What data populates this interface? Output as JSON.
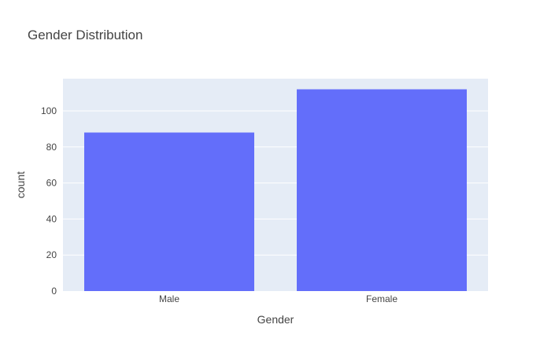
{
  "chart_data": {
    "type": "bar",
    "title": "Gender Distribution",
    "xlabel": "Gender",
    "ylabel": "count",
    "categories": [
      "Male",
      "Female"
    ],
    "values": [
      88,
      112
    ],
    "ylim": [
      0,
      117.9
    ],
    "yticks": [
      0,
      20,
      40,
      60,
      80,
      100
    ],
    "grid": true,
    "colors": {
      "bar": "#636efa",
      "plot_bg": "#e5ecf6",
      "grid": "#ffffff",
      "text": "#444444"
    }
  }
}
